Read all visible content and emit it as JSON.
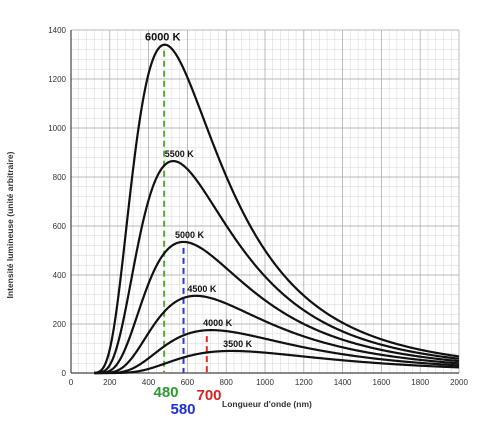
{
  "chart_data": {
    "type": "line",
    "title": "",
    "xlabel": "Longueur d'onde (nm)",
    "ylabel": "Intensité lumineuse (unité arbitraire)",
    "xlim": [
      0,
      2000
    ],
    "ylim": [
      0,
      1400
    ],
    "x_ticks": [
      0,
      200,
      400,
      600,
      800,
      1000,
      1200,
      1400,
      1600,
      1800,
      2000
    ],
    "y_ticks": [
      0,
      200,
      400,
      600,
      800,
      1000,
      1200,
      1400
    ],
    "grid": true,
    "series": [
      {
        "name": "6000 K",
        "temperature": 6000,
        "peak_x": 483,
        "peak_y": 1340
      },
      {
        "name": "5500 K",
        "temperature": 5500,
        "peak_x": 527,
        "peak_y": 865
      },
      {
        "name": "5000 K",
        "temperature": 5000,
        "peak_x": 580,
        "peak_y": 535
      },
      {
        "name": "4500 K",
        "temperature": 4500,
        "peak_x": 644,
        "peak_y": 315
      },
      {
        "name": "4000 K",
        "temperature": 4000,
        "peak_x": 725,
        "peak_y": 175
      },
      {
        "name": "3500 K",
        "temperature": 3500,
        "peak_x": 828,
        "peak_y": 90
      }
    ],
    "markers": [
      {
        "label": "480",
        "x": 480,
        "color": "#2e9a2e",
        "line_color": "#5aa83a",
        "top": 1340
      },
      {
        "label": "580",
        "x": 580,
        "color": "#1f2fd6",
        "line_color": "#2a36e0",
        "top": 535
      },
      {
        "label": "700",
        "x": 700,
        "color": "#d82222",
        "line_color": "#e02828",
        "top": 175
      }
    ]
  }
}
